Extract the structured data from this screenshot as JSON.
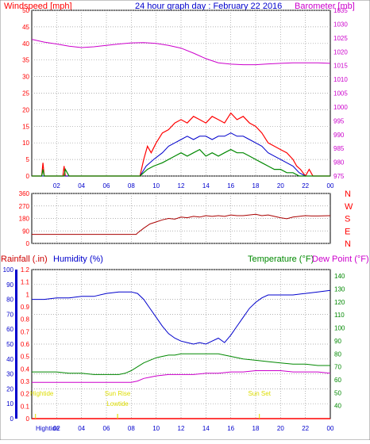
{
  "header": {
    "left_label": "Windspeed [mph]",
    "title": "24 hour graph day : February 22 2016",
    "right_label": "Barometer [mb]"
  },
  "colors": {
    "red": "#ff0000",
    "magenta": "#cc00cc",
    "blue": "#0000cc",
    "green": "#008800",
    "yellow": "#dddd00",
    "dark_red": "#aa0000",
    "grid": "#999999"
  },
  "chart_data": [
    {
      "type": "line",
      "name": "wind-barometer-panel",
      "x_ticks": [
        "02",
        "04",
        "06",
        "08",
        "10",
        "12",
        "14",
        "16",
        "18",
        "20",
        "22",
        "00"
      ],
      "xlim": [
        0,
        24
      ],
      "left_axis": {
        "label": "Windspeed [mph]",
        "ylim": [
          0,
          50
        ],
        "ticks": [
          0,
          5,
          10,
          15,
          20,
          25,
          30,
          35,
          40,
          45,
          50
        ]
      },
      "right_axis": {
        "label": "Barometer [mb]",
        "ylim": [
          975,
          1035
        ],
        "ticks": [
          975,
          980,
          985,
          990,
          995,
          1000,
          1005,
          1010,
          1015,
          1020,
          1025,
          1030,
          1035
        ]
      },
      "barometer": {
        "x": [
          0,
          1,
          2,
          3,
          4,
          5,
          6,
          7,
          8,
          9,
          10,
          11,
          12,
          13,
          14,
          15,
          16,
          17,
          18,
          19,
          20,
          21,
          22,
          23,
          24
        ],
        "values": [
          1024.5,
          1023.5,
          1022.8,
          1022.0,
          1021.5,
          1021.8,
          1022.3,
          1022.8,
          1023.2,
          1023.3,
          1023.0,
          1022.3,
          1021.3,
          1019.5,
          1017.5,
          1016.0,
          1015.5,
          1015.3,
          1015.3,
          1015.6,
          1015.8,
          1016.0,
          1016.0,
          1016.0,
          1015.8
        ]
      },
      "wind_gust": {
        "x": [
          0,
          0.8,
          0.9,
          1.0,
          1.3,
          2.5,
          2.6,
          2.7,
          3,
          8.7,
          9.0,
          9.3,
          9.6,
          10,
          10.5,
          11,
          11.5,
          12,
          12.5,
          13,
          13.5,
          14,
          14.5,
          15,
          15.5,
          16,
          16.5,
          17,
          17.5,
          18,
          18.5,
          19,
          19.5,
          20,
          20.5,
          21,
          21.3,
          21.6,
          22,
          22.3,
          22.6,
          24
        ],
        "values": [
          0,
          0,
          4,
          0,
          0,
          0,
          3,
          0,
          0,
          0,
          5,
          9,
          7,
          10,
          13,
          14,
          16,
          17,
          16,
          18,
          17,
          16,
          18,
          17,
          16,
          19,
          17,
          18,
          16,
          15,
          13,
          10,
          9,
          8,
          7,
          5,
          3,
          2,
          0,
          2,
          0,
          0
        ]
      },
      "wind_avg": {
        "x": [
          0,
          8.7,
          9.2,
          9.8,
          10.5,
          11,
          11.5,
          12,
          12.5,
          13,
          13.5,
          14,
          14.5,
          15,
          15.5,
          16,
          16.5,
          17,
          17.5,
          18,
          18.5,
          19,
          19.5,
          20,
          20.5,
          21,
          21.5,
          22,
          24
        ],
        "values": [
          0,
          0,
          3,
          5,
          7,
          9,
          10,
          11,
          12,
          11,
          12,
          12,
          11,
          12,
          12,
          13,
          12,
          12,
          11,
          10,
          9,
          7,
          6,
          5,
          4,
          3,
          1,
          0,
          0
        ]
      },
      "wind_speed": {
        "x": [
          0,
          0.8,
          0.9,
          1.0,
          1.3,
          2.6,
          2.7,
          3,
          8.7,
          9.3,
          9.8,
          10.5,
          11,
          11.5,
          12,
          12.5,
          13,
          13.5,
          14,
          14.5,
          15,
          15.5,
          16,
          16.5,
          17,
          17.5,
          18,
          18.5,
          19,
          19.5,
          20,
          20.5,
          21,
          21.5,
          22,
          24
        ],
        "values": [
          0,
          0,
          2,
          0,
          0,
          0,
          2,
          0,
          0,
          2,
          3,
          4,
          5,
          6,
          7,
          6,
          7,
          8,
          6,
          7,
          6,
          7,
          8,
          7,
          7,
          6,
          5,
          4,
          3,
          2,
          2,
          1,
          1,
          0,
          0,
          0
        ]
      }
    },
    {
      "type": "line",
      "name": "wind-direction-panel",
      "xlim": [
        0,
        24
      ],
      "left_axis": {
        "ylim": [
          0,
          360
        ],
        "ticks": [
          0,
          90,
          180,
          270,
          360
        ]
      },
      "right_labels": [
        "N",
        "W",
        "S",
        "E",
        "N"
      ],
      "direction": {
        "x": [
          0,
          8.4,
          8.5,
          9,
          9.5,
          10,
          10.5,
          11,
          11.5,
          12,
          12.5,
          13,
          13.5,
          14,
          14.5,
          15,
          15.5,
          16,
          16.5,
          17,
          17.5,
          18,
          18.5,
          19,
          19.5,
          20,
          20.5,
          21,
          21.5,
          22,
          22.5,
          23,
          24
        ],
        "values": [
          65,
          65,
          75,
          110,
          140,
          155,
          170,
          180,
          175,
          190,
          185,
          195,
          190,
          200,
          195,
          200,
          195,
          205,
          200,
          200,
          205,
          210,
          200,
          205,
          195,
          185,
          178,
          190,
          195,
          200,
          198,
          198,
          200
        ]
      }
    },
    {
      "type": "line",
      "name": "humidity-temperature-panel",
      "xlim": [
        0,
        24
      ],
      "header_labels": {
        "rainfall": "Rainfall (.in)",
        "humidity": "Humidity (%)",
        "temperature": "Temperature (°F)",
        "dewpoint": "Dew Point (°F)"
      },
      "humidity_axis": {
        "ylim": [
          0,
          100
        ],
        "ticks": [
          0,
          10,
          20,
          30,
          40,
          50,
          60,
          70,
          80,
          90,
          100
        ]
      },
      "rain_axis": {
        "ylim": [
          0,
          1.2
        ],
        "ticks": [
          "0",
          "0.1",
          "0.2",
          "0.3",
          "0.4",
          "0.5",
          "0.6",
          "0.7",
          "0.8",
          "0.9",
          "1",
          "1.1",
          "1.2"
        ]
      },
      "temp_axis": {
        "ylim": [
          30,
          145
        ],
        "ticks": [
          40,
          50,
          60,
          70,
          80,
          90,
          100,
          110,
          120,
          130,
          140
        ]
      },
      "humidity": {
        "x": [
          0,
          1,
          2,
          3,
          4,
          5,
          6,
          7,
          8,
          8.5,
          9,
          9.5,
          10,
          10.5,
          11,
          11.5,
          12,
          12.5,
          13,
          13.5,
          14,
          14.5,
          15,
          15.5,
          16,
          16.5,
          17,
          17.5,
          18,
          18.5,
          19,
          20,
          21,
          22,
          23,
          24
        ],
        "values": [
          80,
          80,
          81,
          81,
          82,
          82,
          84,
          85,
          85,
          84,
          80,
          74,
          68,
          62,
          57,
          54,
          52,
          51,
          50,
          51,
          50,
          52,
          54,
          51,
          56,
          62,
          68,
          74,
          78,
          81,
          83,
          83,
          83,
          84,
          85,
          86
        ]
      },
      "temperature": {
        "x": [
          0,
          1,
          2,
          3,
          4,
          5,
          6,
          7,
          7.5,
          8,
          8.5,
          9,
          9.5,
          10,
          10.5,
          11,
          11.5,
          12,
          13,
          14,
          15,
          15.5,
          16,
          17,
          18,
          19,
          20,
          21,
          22,
          23,
          24
        ],
        "values": [
          66,
          66,
          66,
          65,
          65,
          64,
          64,
          64,
          65,
          67,
          70,
          73,
          75,
          77,
          78,
          79,
          79,
          80,
          80,
          80,
          80,
          79,
          78,
          76,
          75,
          74,
          73,
          72,
          72,
          71,
          71
        ]
      },
      "dewpoint": {
        "x": [
          0,
          1,
          2,
          3,
          4,
          5,
          6,
          7,
          8,
          8.5,
          9,
          9.5,
          10,
          11,
          12,
          13,
          14,
          15,
          16,
          17,
          18,
          19,
          20,
          21,
          22,
          23,
          24
        ],
        "values": [
          58,
          58,
          58,
          58,
          58,
          58,
          58,
          58,
          58,
          59,
          61,
          62,
          63,
          64,
          64,
          64,
          65,
          65,
          66,
          66,
          67,
          67,
          67,
          66,
          66,
          66,
          65
        ]
      },
      "rainfall": {
        "x": [
          0,
          24
        ],
        "values": [
          0,
          0
        ]
      },
      "annotations": [
        {
          "text": "Hightide",
          "x": 0.3,
          "row": "high"
        },
        {
          "text": "Sun Rise",
          "x": 6.9,
          "row": "high"
        },
        {
          "text": "Lowtide",
          "x": 6.9,
          "row": "low"
        },
        {
          "text": "Sun Set",
          "x": 18.3,
          "row": "high"
        }
      ],
      "x_tick_labels": [
        "02",
        "04",
        "06",
        "08",
        "10",
        "12",
        "14",
        "16",
        "18",
        "20",
        "22",
        "00"
      ],
      "first_tick_overlay": "Hightide"
    }
  ]
}
